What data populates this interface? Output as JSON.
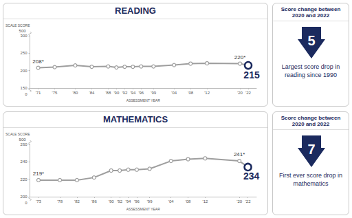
{
  "chart_data": [
    {
      "type": "line",
      "title": "READING",
      "ylabel": "SCALE SCORE",
      "xlabel": "ASSESSMENT YEAR",
      "x": [
        1971,
        1975,
        1980,
        1984,
        1988,
        1990,
        1992,
        1994,
        1996,
        1999,
        2004,
        2008,
        2012,
        2020,
        2022
      ],
      "values": [
        208,
        210,
        215,
        211,
        212,
        209,
        211,
        211,
        212,
        212,
        216,
        220,
        221,
        220,
        215
      ],
      "color": "#9e9e9e",
      "marker": "circle",
      "grid": false,
      "xlim": [
        1969,
        2024
      ],
      "xticks": [
        {
          "value": 1971,
          "label": "'71"
        },
        {
          "value": 1975,
          "label": "'75"
        },
        {
          "value": 1980,
          "label": "'80"
        },
        {
          "value": 1984,
          "label": "'84"
        },
        {
          "value": 1988,
          "label": "'88"
        },
        {
          "value": 1990,
          "label": "'90"
        },
        {
          "value": 1992,
          "label": "'92"
        },
        {
          "value": 1994,
          "label": "'94"
        },
        {
          "value": 1996,
          "label": "'96"
        },
        {
          "value": 1999,
          "label": "'99"
        },
        {
          "value": 2004,
          "label": "'04"
        },
        {
          "value": 2008,
          "label": "'08"
        },
        {
          "value": 2012,
          "label": "'12"
        },
        {
          "value": 2020,
          "label": "'20"
        },
        {
          "value": 2022,
          "label": "'22"
        }
      ],
      "ylim": [
        150,
        300
      ],
      "yticks": [
        150,
        200,
        250,
        300
      ],
      "y_break": [
        0,
        500
      ],
      "annotations": [
        {
          "x": 1971,
          "y": 208,
          "text": "208*"
        },
        {
          "x": 2020,
          "y": 220,
          "text": "220*"
        },
        {
          "x": 2022,
          "y": 215,
          "text": "215"
        }
      ],
      "change": {
        "heading": "Score change between 2020 and 2022",
        "value": 5,
        "text": "Largest score drop in reading since 1990"
      }
    },
    {
      "type": "line",
      "title": "MATHEMATICS",
      "ylabel": "SCALE SCORE",
      "xlabel": "ASSESSMENT YEAR",
      "x": [
        1973,
        1978,
        1982,
        1986,
        1990,
        1992,
        1994,
        1996,
        1999,
        2004,
        2008,
        2012,
        2020,
        2022
      ],
      "values": [
        219,
        219,
        219,
        222,
        230,
        230,
        231,
        231,
        232,
        241,
        243,
        244,
        241,
        234
      ],
      "color": "#9e9e9e",
      "marker": "circle",
      "grid": false,
      "xlim": [
        1971,
        2024
      ],
      "xticks": [
        {
          "value": 1973,
          "label": "'73"
        },
        {
          "value": 1978,
          "label": "'78"
        },
        {
          "value": 1982,
          "label": "'82"
        },
        {
          "value": 1986,
          "label": "'86"
        },
        {
          "value": 1990,
          "label": "'90"
        },
        {
          "value": 1992,
          "label": "'92"
        },
        {
          "value": 1994,
          "label": "'94"
        },
        {
          "value": 1996,
          "label": "'96"
        },
        {
          "value": 1999,
          "label": "'99"
        },
        {
          "value": 2004,
          "label": "'04"
        },
        {
          "value": 2008,
          "label": "'08"
        },
        {
          "value": 2012,
          "label": "'12"
        },
        {
          "value": 2020,
          "label": "'20"
        },
        {
          "value": 2022,
          "label": "'22"
        }
      ],
      "ylim": [
        200,
        260
      ],
      "yticks": [
        200,
        220,
        240,
        260
      ],
      "y_break": [
        0,
        500
      ],
      "annotations": [
        {
          "x": 1973,
          "y": 219,
          "text": "219*"
        },
        {
          "x": 2020,
          "y": 241,
          "text": "241*"
        },
        {
          "x": 2022,
          "y": 234,
          "text": "234"
        }
      ],
      "change": {
        "heading": "Score change between 2020 and 2022",
        "value": 7,
        "text": "First ever score drop in mathematics"
      }
    }
  ]
}
